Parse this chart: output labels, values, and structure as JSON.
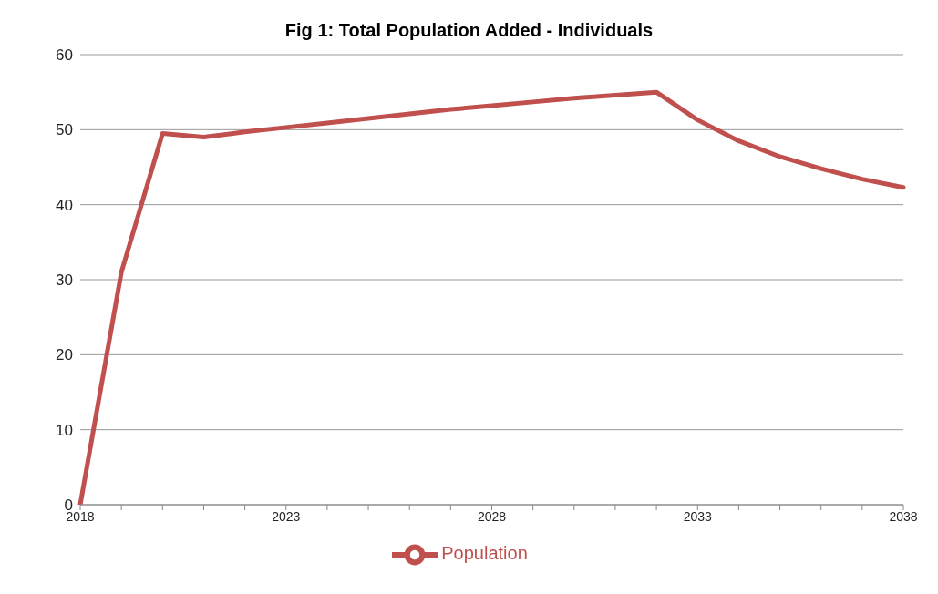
{
  "chart_data": {
    "type": "line",
    "title": "Fig 1: Total Population Added - Individuals",
    "categories": [
      "2018",
      null,
      null,
      null,
      null,
      "2023",
      null,
      null,
      null,
      null,
      "2028",
      null,
      null,
      null,
      null,
      "2033",
      null,
      null,
      null,
      null,
      "2038"
    ],
    "series": [
      {
        "name": "Population",
        "color": "#c0504d",
        "values": [
          0,
          31,
          49.5,
          49,
          49.7,
          50.3,
          50.9,
          51.5,
          52.1,
          52.7,
          53.2,
          53.7,
          54.2,
          54.6,
          55,
          51.3,
          48.5,
          46.4,
          44.8,
          43.4,
          42.3
        ]
      }
    ],
    "ylim": [
      0,
      60
    ],
    "yticks": [
      0,
      10,
      20,
      30,
      40,
      50,
      60
    ],
    "grid": "y",
    "legend": "bottom",
    "marker": "none",
    "line_style": "solid"
  }
}
